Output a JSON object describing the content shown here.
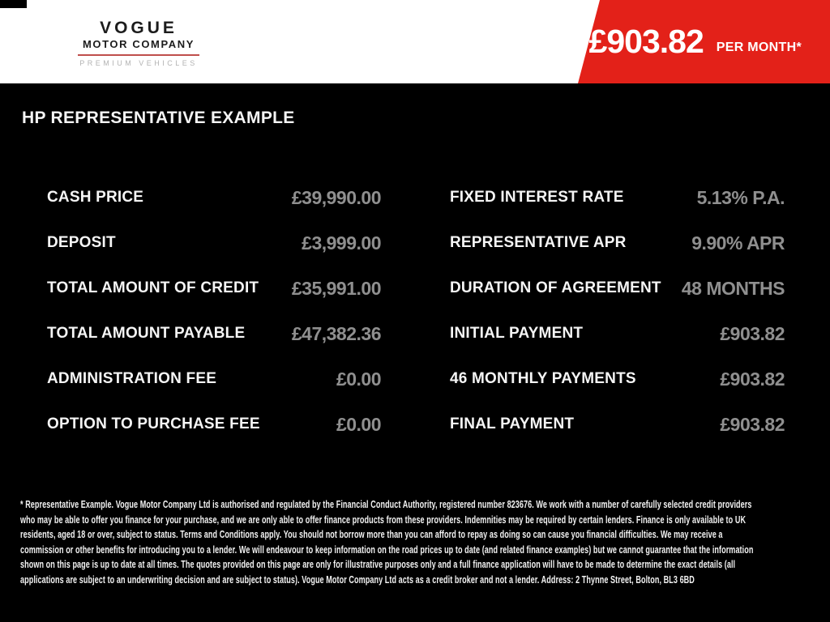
{
  "header": {
    "logo": {
      "name": "VOGUE",
      "subtitle": "MOTOR COMPANY",
      "tagline": "PREMIUM VEHICLES"
    },
    "banner": {
      "price": "£903.82",
      "period": "PER MONTH*"
    }
  },
  "main": {
    "title": "HP REPRESENTATIVE EXAMPLE",
    "disclaimer": "* Representative Example. Vogue Motor Company Ltd is authorised and regulated by the Financial Conduct Authority, registered number 823676. We work with a number of carefully selected credit providers who may be able to offer you finance for your purchase, and we are only able to offer finance products from these providers. Indemnities may be required by certain lenders. Finance is only available to UK residents, aged 18 or over, subject to status. Terms and Conditions apply. You should not borrow more than you can afford to repay as doing so can cause you financial difficulties. We may receive a commission or other benefits for introducing you to a lender. We will endeavour to keep information on the road prices up to date (and related finance examples) but we cannot guarantee that the information shown on this page is up to date at all times. The quotes provided on this page are only for illustrative purposes only and a full finance application will have to be made to determine the exact details (all applications are subject to an underwriting decision and are subject to status). Vogue Motor Company Ltd acts as a credit broker and not a lender. Address: 2 Thynne Street, Bolton, BL3 6BD"
  },
  "finance": {
    "left": [
      {
        "label": "CASH PRICE",
        "value": "£39,990.00"
      },
      {
        "label": "DEPOSIT",
        "value": "£3,999.00"
      },
      {
        "label": "TOTAL AMOUNT OF CREDIT",
        "value": "£35,991.00"
      },
      {
        "label": "TOTAL AMOUNT PAYABLE",
        "value": "£47,382.36"
      },
      {
        "label": "ADMINISTRATION FEE",
        "value": "£0.00"
      },
      {
        "label": "OPTION TO PURCHASE FEE",
        "value": "£0.00"
      }
    ],
    "right": [
      {
        "label": "FIXED INTEREST RATE",
        "value": "5.13% P.A."
      },
      {
        "label": "REPRESENTATIVE APR",
        "value": "9.90% APR"
      },
      {
        "label": "DURATION OF AGREEMENT",
        "value": "48 MONTHS"
      },
      {
        "label": "INITIAL PAYMENT",
        "value": "£903.82"
      },
      {
        "label": "46 MONTHLY PAYMENTS",
        "value": "£903.82"
      },
      {
        "label": "FINAL PAYMENT",
        "value": "£903.82"
      }
    ]
  },
  "colors": {
    "banner_red": "#e32119",
    "logo_underline": "#bf4f4c",
    "value_grey": "#8f8f8f",
    "label_white": "#f5f5f5"
  }
}
